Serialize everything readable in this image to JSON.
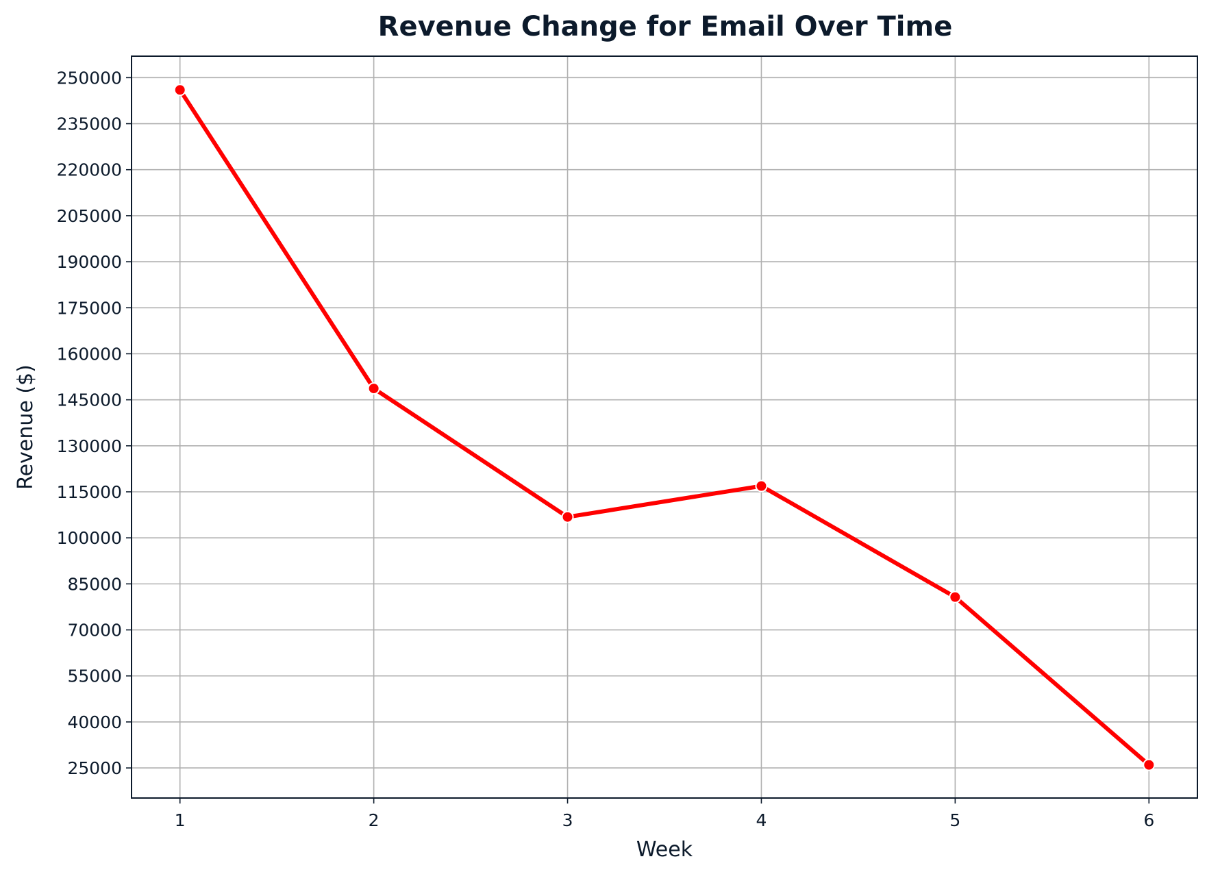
{
  "chart_data": {
    "type": "line",
    "title": "Revenue Change for Email Over Time",
    "xlabel": "Week",
    "ylabel": "Revenue ($)",
    "x": [
      1,
      2,
      3,
      4,
      5,
      6
    ],
    "series": [
      {
        "values": [
          246000,
          148700,
          106800,
          116900,
          80700,
          26000
        ],
        "color": "#ff0000",
        "marker": "circle",
        "marker_edge": "#ffffff"
      }
    ],
    "xticks": [
      1,
      2,
      3,
      4,
      5,
      6
    ],
    "yticks": [
      25000,
      40000,
      55000,
      70000,
      85000,
      100000,
      115000,
      130000,
      145000,
      160000,
      175000,
      190000,
      205000,
      220000,
      235000,
      250000
    ],
    "xlim": [
      0.75,
      6.25
    ],
    "ylim": [
      15200,
      257000
    ],
    "grid": true,
    "legend": false
  }
}
